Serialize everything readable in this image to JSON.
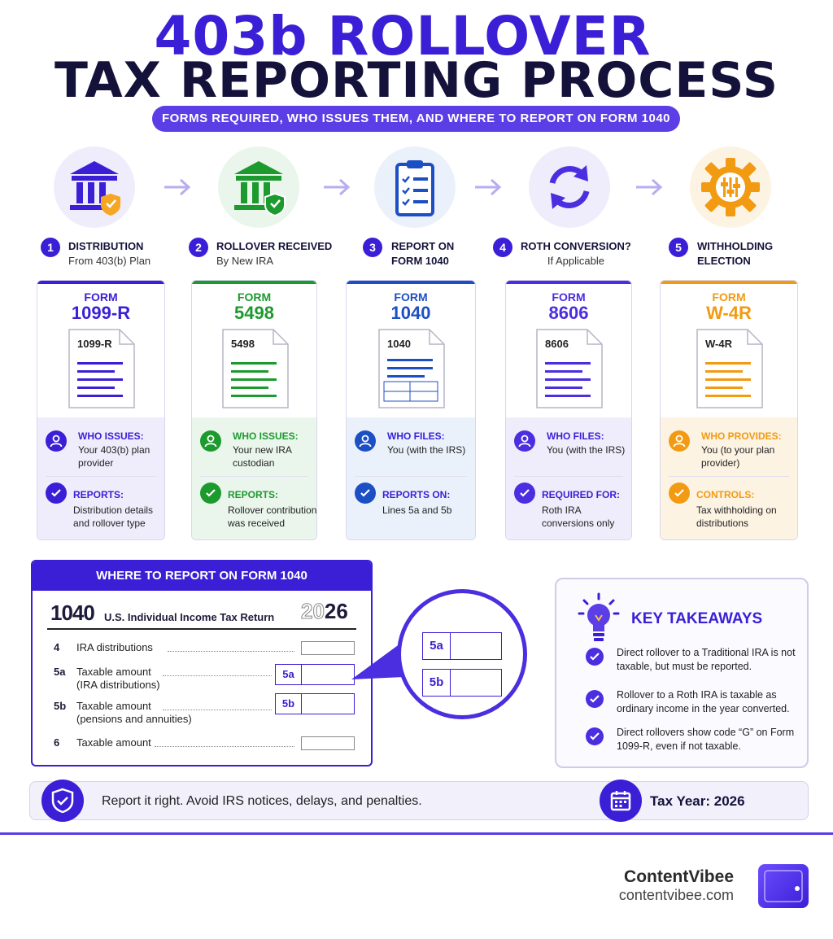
{
  "header": {
    "title_line1": "403b ROLLOVER",
    "title_line2": "TAX REPORTING PROCESS",
    "subtitle": "FORMS REQUIRED, WHO ISSUES THEM, AND WHERE TO REPORT ON FORM 1040"
  },
  "steps": [
    {
      "num": "1",
      "title": "DISTRIBUTION",
      "sub": "From 403(b) Plan",
      "icon": "bank-shield-icon",
      "color": "#3a1fd6",
      "bg": "#efedfb",
      "form_label": "FORM",
      "form_number": "1099-R",
      "doc_label": "1099-R",
      "info1_head": "WHO ISSUES:",
      "info1_text": "Your 403(b) plan provider",
      "info2_head": "REPORTS:",
      "info2_text": "Distribution details and rollover type"
    },
    {
      "num": "2",
      "title": "ROLLOVER RECEIVED",
      "sub": "By New IRA",
      "icon": "bank-check-icon",
      "color": "#1c9a2e",
      "bg": "#eaf6ec",
      "form_label": "FORM",
      "form_number": "5498",
      "doc_label": "5498",
      "info1_head": "WHO ISSUES:",
      "info1_text": "Your new IRA custodian",
      "info2_head": "REPORTS:",
      "info2_text": "Rollover contribution was received"
    },
    {
      "num": "3",
      "title": "REPORT ON",
      "sub": "FORM 1040",
      "icon": "clipboard-icon",
      "color": "#1d4fc4",
      "bg": "#ebf1fb",
      "form_label": "FORM",
      "form_number": "1040",
      "doc_label": "1040",
      "info1_head": "WHO FILES:",
      "info1_text": "You (with the IRS)",
      "info2_head": "REPORTS ON:",
      "info2_text": "Lines 5a and 5b"
    },
    {
      "num": "4",
      "title": "ROTH CONVERSION?",
      "sub": "If Applicable",
      "icon": "refresh-icon",
      "color": "#4a2ee0",
      "bg": "#efedfb",
      "form_label": "FORM",
      "form_number": "8606",
      "doc_label": "8606",
      "info1_head": "WHO FILES:",
      "info1_text": "You (with the IRS)",
      "info2_head": "REQUIRED FOR:",
      "info2_text": "Roth IRA conversions only"
    },
    {
      "num": "5",
      "title": "WITHHOLDING",
      "sub": "ELECTION",
      "icon": "gear-sliders-icon",
      "color": "#f29a12",
      "bg": "#fdf3e3",
      "form_label": "FORM",
      "form_number": "W-4R",
      "doc_label": "W-4R",
      "info1_head": "WHO PROVIDES:",
      "info1_text": "You (to your plan provider)",
      "info2_head": "CONTROLS:",
      "info2_text": "Tax withholding on distributions"
    }
  ],
  "form1040": {
    "header": "WHERE TO REPORT ON FORM 1040",
    "number": "1040",
    "return_title": "U.S. Individual Income Tax Return",
    "year_ghost": "20",
    "year_bold": "26",
    "lines": [
      {
        "num": "4",
        "label": "IRA distributions",
        "box": ""
      },
      {
        "num": "5a",
        "label": "Taxable amount (IRA distributions)",
        "box": "5a"
      },
      {
        "num": "5b",
        "label": "Taxable amount (pensions and annuities)",
        "box": "5b"
      },
      {
        "num": "6",
        "label": "Taxable amount",
        "box": ""
      }
    ],
    "zoom_boxes": [
      "5a",
      "5b"
    ]
  },
  "takeaways": {
    "title": "KEY TAKEAWAYS",
    "items": [
      "Direct rollover to a Traditional IRA is not taxable, but must be reported.",
      "Rollover to a Roth IRA is taxable as ordinary income in the year converted.",
      "Direct rollovers show code “G” on Form 1099-R, even if not taxable."
    ]
  },
  "banner": {
    "message": "Report it right. Avoid IRS notices, delays, and penalties.",
    "tax_year": "Tax Year: 2026"
  },
  "footer": {
    "brand": "ContentVibee",
    "url": "contentvibee.com"
  }
}
